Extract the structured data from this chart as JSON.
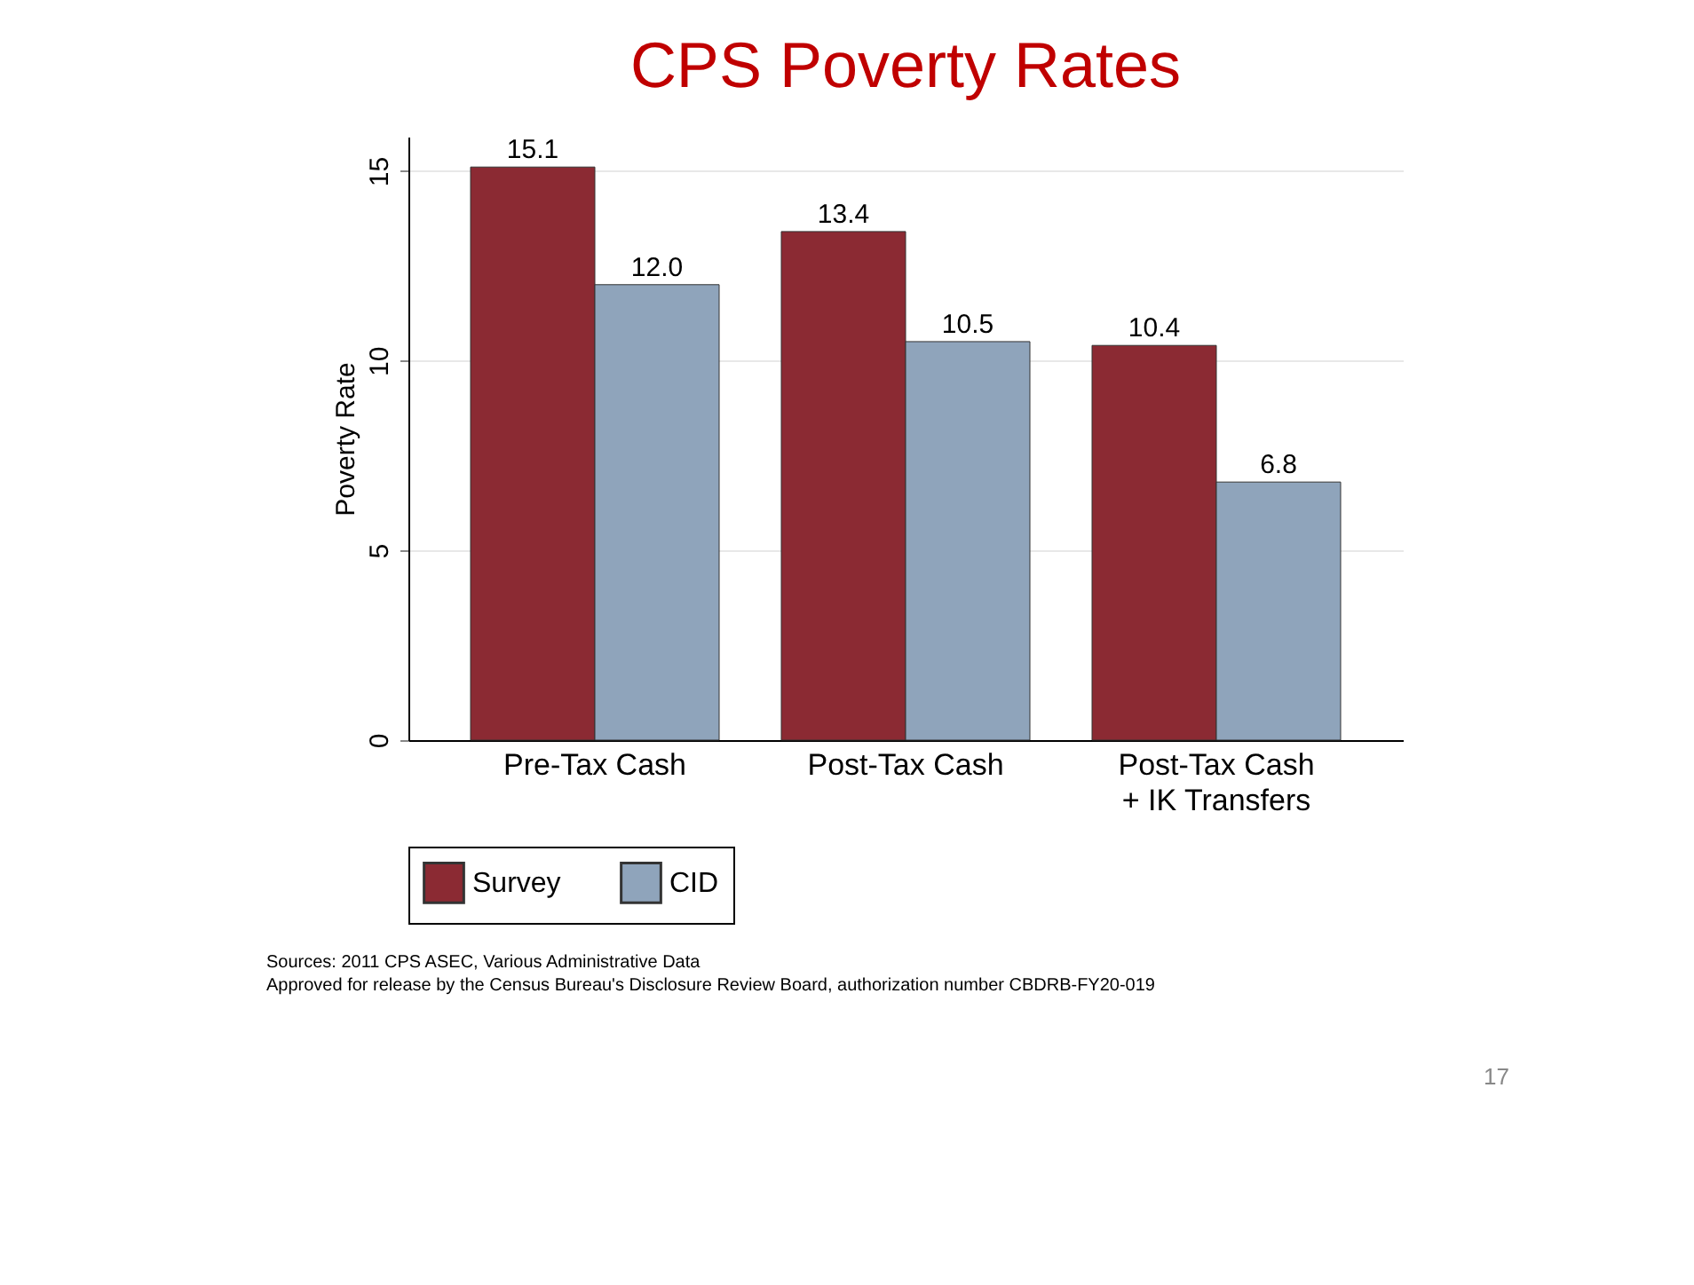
{
  "chart_data": {
    "type": "bar",
    "title": "CPS Poverty Rates",
    "ylabel": "Poverty Rate",
    "categories": [
      "Pre-Tax Cash",
      "Post-Tax Cash",
      "Post-Tax Cash\n+ IK Transfers"
    ],
    "series": [
      {
        "name": "Survey",
        "color": "#8b2a33",
        "values": [
          15.1,
          13.4,
          10.4
        ],
        "value_labels": [
          "15.1",
          "13.4",
          "10.4"
        ]
      },
      {
        "name": "CID",
        "color": "#8fa4bb",
        "values": [
          12.0,
          10.5,
          6.8
        ],
        "value_labels": [
          "12.0",
          "10.5",
          "6.8"
        ]
      }
    ],
    "ylim": [
      0,
      15.9
    ],
    "yticks": [
      0,
      5,
      10,
      15
    ],
    "grid": "y",
    "legend": "bottom",
    "annotations": [
      "Sources: 2011 CPS ASEC, Various Administrative Data",
      "Approved for release by the Census Bureau's Disclosure Review Board, authorization number CBDRB-FY20-019",
      "17"
    ]
  }
}
